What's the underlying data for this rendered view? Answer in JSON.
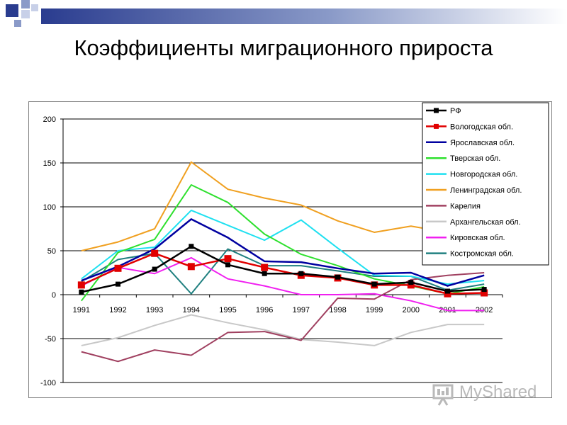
{
  "slide": {
    "title": "Коэффициенты миграционного прироста",
    "accent_colors": [
      "#2a3c8f",
      "#8a9ac8",
      "#c8d0e8"
    ]
  },
  "watermark": {
    "text": "MyShared",
    "icon": "presentation-board-icon"
  },
  "chart_data": {
    "type": "line",
    "title": "",
    "xlabel": "",
    "ylabel": "",
    "categories": [
      "1991",
      "1992",
      "1993",
      "1994",
      "1995",
      "1996",
      "1997",
      "1998",
      "1999",
      "2000",
      "2001",
      "2002"
    ],
    "ylim": [
      -100,
      200
    ],
    "yticks": [
      -100,
      -50,
      0,
      50,
      100,
      150,
      200
    ],
    "grid": true,
    "legend_position": "top-right",
    "series": [
      {
        "name": "РФ",
        "color": "#000000",
        "marker": "square",
        "values": [
          3,
          12,
          29,
          55,
          34,
          24,
          24,
          20,
          12,
          14,
          4,
          6
        ]
      },
      {
        "name": "Вологодская обл.",
        "color": "#e00000",
        "marker": "square",
        "values": [
          11,
          30,
          47,
          32,
          41,
          31,
          22,
          19,
          11,
          11,
          1,
          2
        ]
      },
      {
        "name": "Ярославская обл.",
        "color": "#0000a0",
        "marker": "none",
        "values": [
          16,
          32,
          52,
          86,
          65,
          38,
          37,
          30,
          24,
          25,
          10,
          22
        ]
      },
      {
        "name": "Тверская обл.",
        "color": "#2ee02e",
        "marker": "none",
        "values": [
          -7,
          48,
          63,
          125,
          105,
          69,
          46,
          33,
          18,
          10,
          1,
          9
        ]
      },
      {
        "name": "Новгородская обл.",
        "color": "#1fe0f0",
        "marker": "none",
        "values": [
          18,
          50,
          54,
          96,
          79,
          62,
          85,
          53,
          22,
          21,
          12,
          16
        ]
      },
      {
        "name": "Ленинградская обл.",
        "color": "#f0a020",
        "marker": "none",
        "values": [
          50,
          60,
          75,
          151,
          120,
          110,
          102,
          84,
          71,
          78,
          71,
          78
        ]
      },
      {
        "name": "Карелия",
        "color": "#a04060",
        "marker": "none",
        "values": [
          -65,
          -76,
          -63,
          -69,
          -43,
          -42,
          -52,
          -4,
          -5,
          17,
          22,
          25
        ]
      },
      {
        "name": "Архангельская обл.",
        "color": "#c8c8c8",
        "marker": "none",
        "values": [
          -58,
          -49,
          -35,
          -23,
          -32,
          -40,
          -51,
          -54,
          -58,
          -43,
          -34,
          -34
        ]
      },
      {
        "name": "Кировская обл.",
        "color": "#f020f0",
        "marker": "none",
        "values": [
          10,
          31,
          24,
          42,
          18,
          10,
          0,
          0,
          1,
          -7,
          -18,
          -18
        ]
      },
      {
        "name": "Костромская обл.",
        "color": "#208080",
        "marker": "none",
        "values": [
          15,
          40,
          47,
          1,
          52,
          33,
          33,
          27,
          21,
          21,
          5,
          12
        ]
      }
    ]
  }
}
